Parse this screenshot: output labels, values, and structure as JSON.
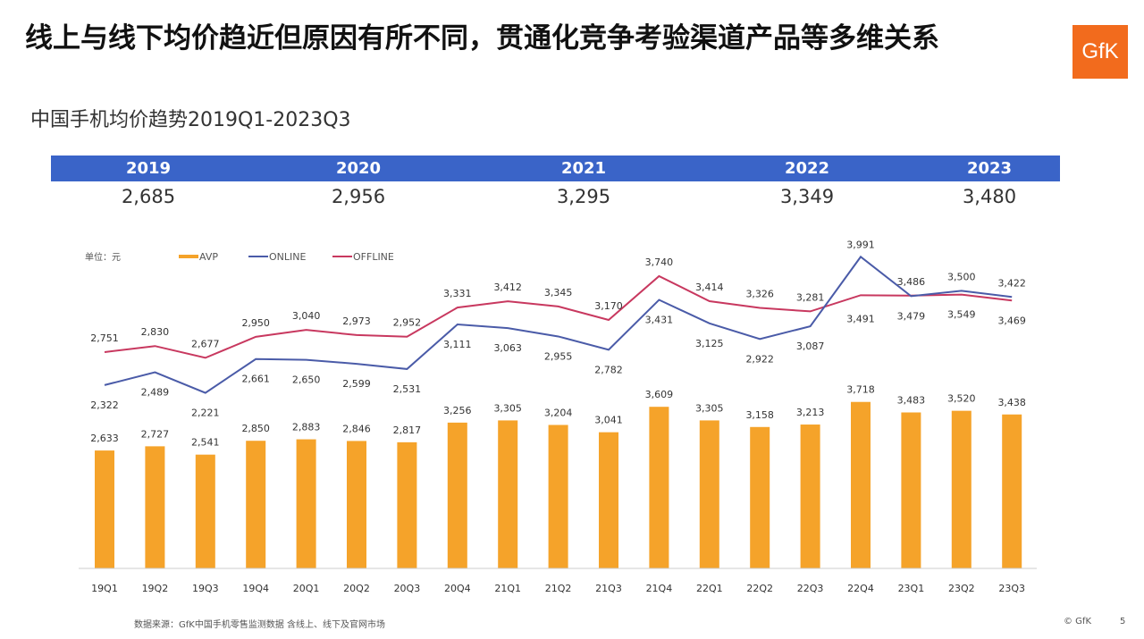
{
  "title": "线上与线下均价趋近但原因有所不同，贯通化竞争考验渠道产品等多维关系",
  "subtitle": "中国手机均价趋势2019Q1-2023Q3",
  "logo_text": "GfK",
  "years": [
    {
      "year": "2019",
      "avp": "2,685"
    },
    {
      "year": "2020",
      "avp": "2,956"
    },
    {
      "year": "2021",
      "avp": "3,295"
    },
    {
      "year": "2022",
      "avp": "3,349"
    },
    {
      "year": "2023",
      "avp": "3,480"
    }
  ],
  "chart_data": {
    "type": "bar+line",
    "unit_label": "单位：元",
    "categories": [
      "19Q1",
      "19Q2",
      "19Q3",
      "19Q4",
      "20Q1",
      "20Q2",
      "20Q3",
      "20Q4",
      "21Q1",
      "21Q2",
      "21Q3",
      "21Q4",
      "22Q1",
      "22Q2",
      "22Q3",
      "22Q4",
      "23Q1",
      "23Q2",
      "23Q3"
    ],
    "series": [
      {
        "name": "AVP",
        "type": "bar",
        "color": "#F5A32A",
        "values": [
          2633,
          2727,
          2541,
          2850,
          2883,
          2846,
          2817,
          3256,
          3305,
          3204,
          3041,
          3609,
          3305,
          3158,
          3213,
          3718,
          3483,
          3520,
          3438
        ]
      },
      {
        "name": "ONLINE",
        "type": "line",
        "color": "#4A5BA8",
        "values": [
          2322,
          2489,
          2221,
          2661,
          2650,
          2599,
          2531,
          3111,
          3063,
          2955,
          2782,
          3431,
          3125,
          2922,
          3087,
          3991,
          3479,
          3549,
          3469
        ]
      },
      {
        "name": "OFFLINE",
        "type": "line",
        "color": "#C8385F",
        "values": [
          2751,
          2830,
          2677,
          2950,
          3040,
          2973,
          2952,
          3331,
          3412,
          3345,
          3170,
          3740,
          3414,
          3326,
          3281,
          3491,
          3486,
          3500,
          3422
        ]
      }
    ],
    "legend_position": "top-left",
    "grid": false
  },
  "footer": {
    "source": "数据来源：GfK中国手机零售监测数据 含线上、线下及官网市场",
    "copyright": "© GfK",
    "page": "5"
  }
}
